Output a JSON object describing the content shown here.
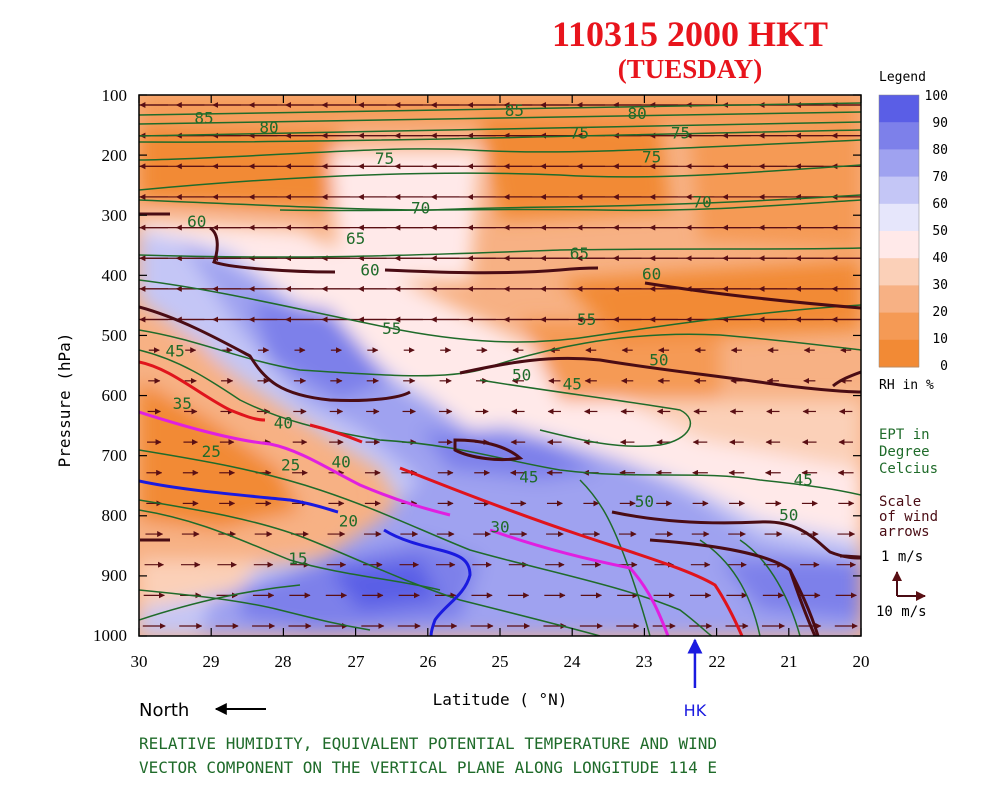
{
  "chart_data": {
    "type": "heatmap",
    "title": "110315  2000 HKT",
    "subtitle": "(TUESDAY)",
    "xlabel": "Latitude ( °N)",
    "ylabel": "Pressure (hPa)",
    "x_ticks": [
      "30",
      "29",
      "28",
      "27",
      "26",
      "25",
      "24",
      "23",
      "22",
      "21",
      "20"
    ],
    "y_ticks": [
      "100",
      "200",
      "300",
      "400",
      "500",
      "600",
      "700",
      "800",
      "900",
      "1000"
    ],
    "xlim": [
      30,
      20
    ],
    "ylim": [
      100,
      1000
    ],
    "north_label": "North",
    "hk_label": "HK",
    "hk_latitude": 22.3,
    "legend": {
      "title": "Legend",
      "levels": [
        "100",
        "90",
        "80",
        "70",
        "60",
        "50",
        "40",
        "30",
        "20",
        "10",
        "0"
      ],
      "colors": [
        "#5a5ee6",
        "#7d80ea",
        "#9fa2f0",
        "#c4c6f6",
        "#e6e6fb",
        "#ffe9e9",
        "#fbd0b8",
        "#f7b184",
        "#f59a55",
        "#f28a35"
      ],
      "unit": "RH in %"
    },
    "ept_note": [
      "EPT in",
      "Degree",
      "Celcius"
    ],
    "wind_note": [
      "Scale",
      "of wind",
      "arrows"
    ],
    "wind_scale": {
      "vertical": "1 m/s",
      "horizontal": "10 m/s"
    },
    "ept_contour_labels": [
      {
        "value": "85",
        "lat": 29.1,
        "p": 147
      },
      {
        "value": "80",
        "lat": 28.2,
        "p": 163
      },
      {
        "value": "85",
        "lat": 24.8,
        "p": 135
      },
      {
        "value": "80",
        "lat": 23.1,
        "p": 140
      },
      {
        "value": "75",
        "lat": 26.6,
        "p": 215
      },
      {
        "value": "75",
        "lat": 23.9,
        "p": 172
      },
      {
        "value": "75",
        "lat": 22.5,
        "p": 172
      },
      {
        "value": "75",
        "lat": 22.9,
        "p": 212
      },
      {
        "value": "70",
        "lat": 26.1,
        "p": 297
      },
      {
        "value": "70",
        "lat": 22.2,
        "p": 287
      },
      {
        "value": "65",
        "lat": 27.0,
        "p": 348
      },
      {
        "value": "65",
        "lat": 23.9,
        "p": 373
      },
      {
        "value": "60",
        "lat": 29.2,
        "p": 320
      },
      {
        "value": "60",
        "lat": 26.8,
        "p": 400
      },
      {
        "value": "60",
        "lat": 22.9,
        "p": 407
      },
      {
        "value": "55",
        "lat": 26.5,
        "p": 498
      },
      {
        "value": "55",
        "lat": 23.8,
        "p": 483
      },
      {
        "value": "50",
        "lat": 24.7,
        "p": 575
      },
      {
        "value": "50",
        "lat": 22.8,
        "p": 550
      },
      {
        "value": "45",
        "lat": 29.5,
        "p": 535
      },
      {
        "value": "45",
        "lat": 24.0,
        "p": 590
      },
      {
        "value": "45",
        "lat": 24.6,
        "p": 745
      },
      {
        "value": "45",
        "lat": 20.8,
        "p": 750
      },
      {
        "value": "50",
        "lat": 23.0,
        "p": 785
      },
      {
        "value": "50",
        "lat": 21.0,
        "p": 808
      },
      {
        "value": "40",
        "lat": 28.0,
        "p": 655
      },
      {
        "value": "40",
        "lat": 27.2,
        "p": 720
      },
      {
        "value": "35",
        "lat": 29.4,
        "p": 622
      },
      {
        "value": "30",
        "lat": 25.0,
        "p": 828
      },
      {
        "value": "25",
        "lat": 29.0,
        "p": 702
      },
      {
        "value": "25",
        "lat": 27.9,
        "p": 725
      },
      {
        "value": "20",
        "lat": 27.1,
        "p": 818
      },
      {
        "value": "15",
        "lat": 27.8,
        "p": 880
      }
    ],
    "caption": [
      "RELATIVE HUMIDITY, EQUIVALENT POTENTIAL TEMPERATURE AND WIND",
      "VECTOR COMPONENT ON THE VERTICAL PLANE ALONG LONGITUDE 114 E"
    ]
  }
}
